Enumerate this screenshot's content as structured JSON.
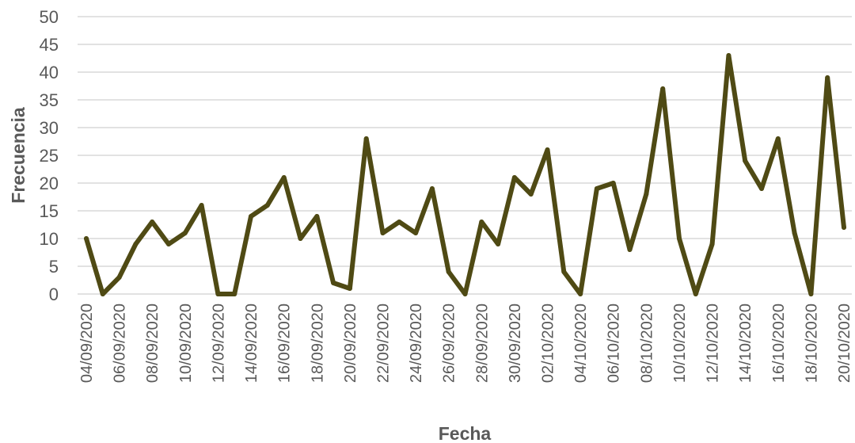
{
  "chart_data": {
    "type": "line",
    "xlabel": "Fecha",
    "ylabel": "Frecuencia",
    "ylim": [
      0,
      50
    ],
    "yticks": [
      0,
      5,
      10,
      15,
      20,
      25,
      30,
      35,
      40,
      45,
      50
    ],
    "grid": true,
    "legend": "none",
    "colors": {
      "series": "#4f4a14",
      "grid": "#d9d9d9",
      "text": "#595959"
    },
    "x": [
      "04/09/2020",
      "05/09/2020",
      "06/09/2020",
      "07/09/2020",
      "08/09/2020",
      "09/09/2020",
      "10/09/2020",
      "11/09/2020",
      "12/09/2020",
      "13/09/2020",
      "14/09/2020",
      "15/09/2020",
      "16/09/2020",
      "17/09/2020",
      "18/09/2020",
      "19/09/2020",
      "20/09/2020",
      "21/09/2020",
      "22/09/2020",
      "23/09/2020",
      "24/09/2020",
      "25/09/2020",
      "26/09/2020",
      "27/09/2020",
      "28/09/2020",
      "29/09/2020",
      "30/09/2020",
      "01/10/2020",
      "02/10/2020",
      "03/10/2020",
      "04/10/2020",
      "05/10/2020",
      "06/10/2020",
      "07/10/2020",
      "08/10/2020",
      "09/10/2020",
      "10/10/2020",
      "11/10/2020",
      "12/10/2020",
      "13/10/2020",
      "14/10/2020",
      "15/10/2020",
      "16/10/2020",
      "17/10/2020",
      "18/10/2020",
      "19/10/2020",
      "20/10/2020"
    ],
    "x_tick_labels": [
      "04/09/2020",
      "06/09/2020",
      "08/09/2020",
      "10/09/2020",
      "12/09/2020",
      "14/09/2020",
      "16/09/2020",
      "18/09/2020",
      "20/09/2020",
      "22/09/2020",
      "24/09/2020",
      "26/09/2020",
      "28/09/2020",
      "30/09/2020",
      "02/10/2020",
      "04/10/2020",
      "06/10/2020",
      "08/10/2020",
      "10/10/2020",
      "12/10/2020",
      "14/10/2020",
      "16/10/2020",
      "18/10/2020",
      "20/10/2020"
    ],
    "series": [
      {
        "values": [
          10,
          0,
          3,
          9,
          13,
          9,
          11,
          16,
          0,
          0,
          14,
          16,
          21,
          10,
          14,
          2,
          1,
          28,
          11,
          13,
          11,
          19,
          4,
          0,
          13,
          9,
          21,
          18,
          26,
          4,
          0,
          19,
          20,
          8,
          18,
          37,
          10,
          0,
          9,
          43,
          24,
          19,
          28,
          11,
          0,
          39,
          12
        ]
      }
    ]
  }
}
